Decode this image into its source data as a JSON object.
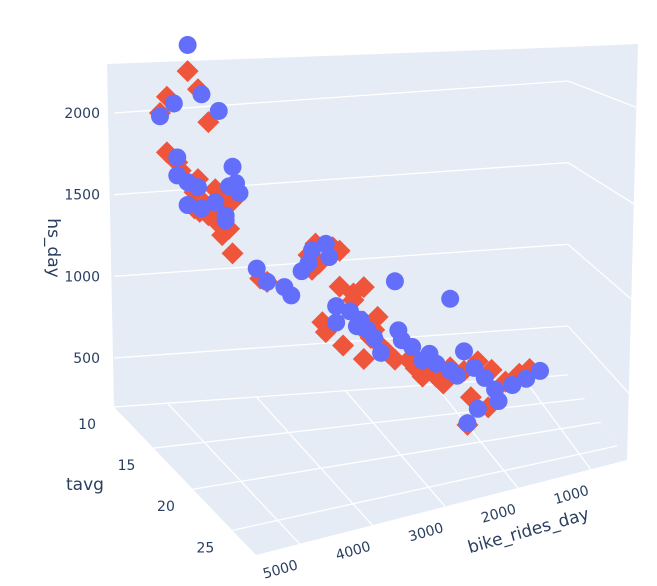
{
  "chart_data": {
    "type": "scatter3d",
    "title": "",
    "colors": {
      "pane": "#e5ecf6",
      "grid": "#ffffff",
      "series_a": "#ef553b",
      "series_b": "#636efa"
    },
    "axes": {
      "z": {
        "label": "hs_day",
        "ticks": [
          "500",
          "1000",
          "1500",
          "2000"
        ],
        "range": [
          200,
          2300
        ]
      },
      "tavg": {
        "label": "tavg",
        "ticks": [
          "10",
          "15",
          "20",
          "25"
        ],
        "range": [
          10,
          28
        ]
      },
      "bike": {
        "label": "bike_rides_day",
        "ticks": [
          "1000",
          "2000",
          "3000",
          "4000",
          "5000"
        ],
        "range": [
          500,
          5600
        ]
      }
    },
    "series": [
      {
        "marker": "diamond",
        "color": "#ef553b",
        "points": [
          [
            2100,
            900
          ],
          [
            2000,
            880
          ],
          [
            2260,
            960
          ],
          [
            2150,
            990
          ],
          [
            1760,
            900
          ],
          [
            1700,
            930
          ],
          [
            1650,
            940
          ],
          [
            1600,
            990
          ],
          [
            1520,
            980
          ],
          [
            1450,
            1010
          ],
          [
            1420,
            980
          ],
          [
            1400,
            995
          ],
          [
            1380,
            1020
          ],
          [
            1350,
            1040
          ],
          [
            1540,
            1040
          ],
          [
            1500,
            1080
          ],
          [
            1470,
            1090
          ],
          [
            1430,
            1060
          ],
          [
            1300,
            1080
          ],
          [
            1260,
            1060
          ],
          [
            1150,
            1090
          ],
          [
            1950,
            1020
          ],
          [
            1000,
            1170
          ],
          [
            980,
            1190
          ],
          [
            1200,
            1380
          ],
          [
            1150,
            1310
          ],
          [
            1100,
            1340
          ],
          [
            1060,
            1320
          ],
          [
            1180,
            1400
          ],
          [
            1220,
            1330
          ],
          [
            960,
            1400
          ],
          [
            920,
            1440
          ],
          [
            960,
            1470
          ],
          [
            880,
            1440
          ],
          [
            780,
            1510
          ],
          [
            750,
            1470
          ],
          [
            720,
            1460
          ],
          [
            700,
            1500
          ],
          [
            650,
            1490
          ],
          [
            600,
            1520
          ],
          [
            560,
            1540
          ],
          [
            520,
            1560
          ],
          [
            740,
            1350
          ],
          [
            680,
            1360
          ],
          [
            600,
            1410
          ],
          [
            520,
            1470
          ],
          [
            520,
            1600
          ],
          [
            470,
            1620
          ],
          [
            480,
            1660
          ],
          [
            420,
            1640
          ],
          [
            420,
            1680
          ],
          [
            380,
            1700
          ],
          [
            480,
            1720
          ],
          [
            460,
            1760
          ],
          [
            520,
            1800
          ],
          [
            470,
            1840
          ],
          [
            400,
            1880
          ],
          [
            450,
            1920
          ],
          [
            480,
            1950
          ],
          [
            300,
            1780
          ],
          [
            240,
            1830
          ],
          [
            130,
            1770
          ]
        ]
      },
      {
        "marker": "circle",
        "color": "#636efa",
        "points": [
          [
            2420,
            960
          ],
          [
            2060,
            920
          ],
          [
            1980,
            880
          ],
          [
            2120,
            1000
          ],
          [
            2020,
            1050
          ],
          [
            1730,
            930
          ],
          [
            1620,
            930
          ],
          [
            1580,
            960
          ],
          [
            1550,
            990
          ],
          [
            1440,
            960
          ],
          [
            1420,
            1000
          ],
          [
            1380,
            1070
          ],
          [
            1460,
            1040
          ],
          [
            1560,
            1080
          ],
          [
            1680,
            1090
          ],
          [
            1580,
            1100
          ],
          [
            1520,
            1110
          ],
          [
            1350,
            1070
          ],
          [
            1060,
            1160
          ],
          [
            980,
            1190
          ],
          [
            950,
            1240
          ],
          [
            900,
            1260
          ],
          [
            1180,
            1320
          ],
          [
            1050,
            1290
          ],
          [
            1100,
            1310
          ],
          [
            1220,
            1360
          ],
          [
            1140,
            1370
          ],
          [
            840,
            1390
          ],
          [
            810,
            1430
          ],
          [
            740,
            1390
          ],
          [
            760,
            1460
          ],
          [
            720,
            1450
          ],
          [
            700,
            1480
          ],
          [
            650,
            1500
          ],
          [
            560,
            1520
          ],
          [
            700,
            1570
          ],
          [
            640,
            1580
          ],
          [
            600,
            1610
          ],
          [
            520,
            1640
          ],
          [
            560,
            1660
          ],
          [
            500,
            1680
          ],
          [
            460,
            1720
          ],
          [
            430,
            1740
          ],
          [
            580,
            1760
          ],
          [
            480,
            1790
          ],
          [
            420,
            1820
          ],
          [
            350,
            1850
          ],
          [
            280,
            1860
          ],
          [
            230,
            1800
          ],
          [
            380,
            1900
          ],
          [
            420,
            1940
          ],
          [
            470,
            1980
          ],
          [
            1000,
            1560
          ],
          [
            900,
            1720
          ],
          [
            140,
            1770
          ]
        ]
      }
    ]
  }
}
